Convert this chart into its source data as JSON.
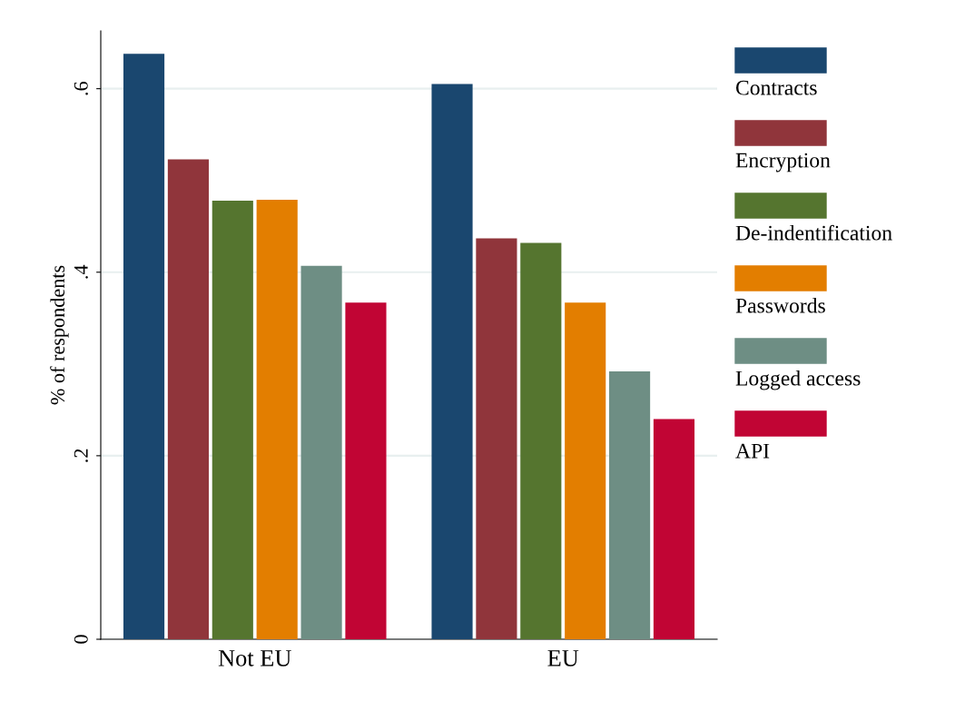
{
  "chart_data": {
    "type": "bar",
    "ylabel": "% of respondents",
    "categories": [
      "Not EU",
      "EU"
    ],
    "series": [
      {
        "name": "Contracts",
        "color": "#1a476f",
        "values": [
          0.638,
          0.605
        ]
      },
      {
        "name": "Encryption",
        "color": "#90353b",
        "values": [
          0.523,
          0.437
        ]
      },
      {
        "name": "De-indentification",
        "color": "#55752f",
        "values": [
          0.478,
          0.432
        ]
      },
      {
        "name": "Passwords",
        "color": "#e37e00",
        "values": [
          0.479,
          0.367
        ]
      },
      {
        "name": "Logged access",
        "color": "#6e8e84",
        "values": [
          0.407,
          0.292
        ]
      },
      {
        "name": "API",
        "color": "#c10534",
        "values": [
          0.367,
          0.24
        ]
      }
    ],
    "ylim": [
      0,
      0.663
    ],
    "yticks": [
      0,
      {
        "value": 0.2,
        "label": ".2"
      },
      {
        "value": 0.4,
        "label": ".4"
      },
      {
        "value": 0.6,
        "label": ".6"
      }
    ],
    "grid": "y",
    "legend": "right"
  }
}
